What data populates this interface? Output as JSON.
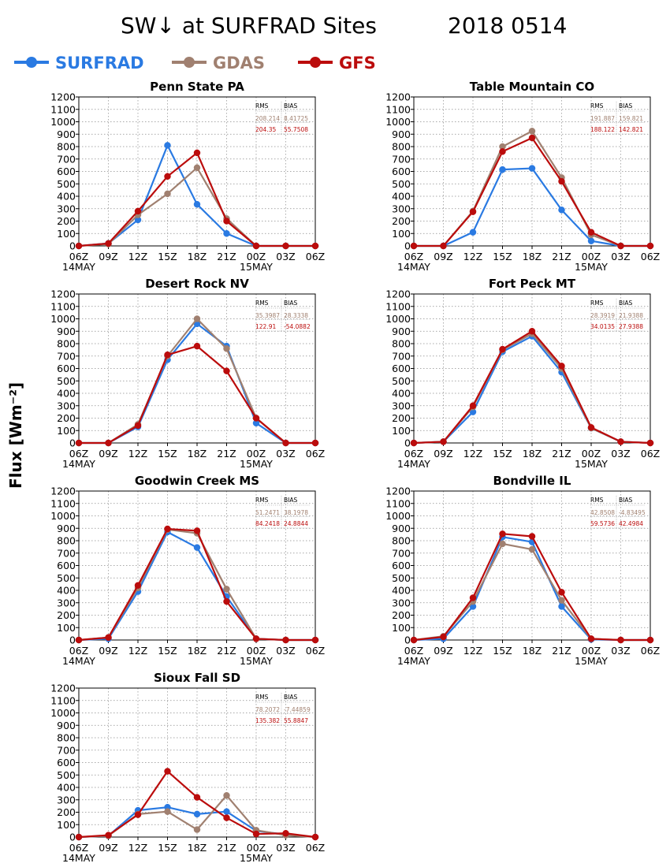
{
  "title": {
    "main": "SW↓ at SURFRAD Sites",
    "date": "2018 0514"
  },
  "y_axis_label": "Flux [Wm⁻²]",
  "legend": [
    {
      "name": "SURFRAD",
      "color": "#2a7ae2"
    },
    {
      "name": "GDAS",
      "color": "#a08070"
    },
    {
      "name": "GFS",
      "color": "#bb0c0c"
    }
  ],
  "chart_data": [
    {
      "type": "line",
      "title": "Penn State PA",
      "x": [
        "06Z",
        "09Z",
        "12Z",
        "15Z",
        "18Z",
        "21Z",
        "00Z",
        "03Z",
        "06Z"
      ],
      "x_date_labels": [
        "14MAY",
        "15MAY"
      ],
      "ylim": [
        0,
        1200
      ],
      "yticks": [
        0,
        100,
        200,
        300,
        400,
        500,
        600,
        700,
        800,
        900,
        1000,
        1100,
        1200
      ],
      "grid": true,
      "stats": {
        "header": [
          "RMS",
          "BIAS"
        ],
        "GDAS": [
          "208.214",
          "8.41725"
        ],
        "GFS": [
          "204.35",
          "55.7508"
        ]
      },
      "series": [
        {
          "name": "SURFRAD",
          "values": [
            0,
            20,
            210,
            810,
            335,
            100,
            0,
            0,
            0
          ]
        },
        {
          "name": "GDAS",
          "values": [
            0,
            15,
            250,
            420,
            630,
            220,
            0,
            0,
            0
          ]
        },
        {
          "name": "GFS",
          "values": [
            0,
            20,
            280,
            560,
            750,
            200,
            0,
            0,
            0
          ]
        }
      ]
    },
    {
      "type": "line",
      "title": "Table Mountain CO",
      "x": [
        "06Z",
        "09Z",
        "12Z",
        "15Z",
        "18Z",
        "21Z",
        "00Z",
        "03Z",
        "06Z"
      ],
      "x_date_labels": [
        "14MAY",
        "15MAY"
      ],
      "ylim": [
        0,
        1200
      ],
      "yticks": [
        0,
        100,
        200,
        300,
        400,
        500,
        600,
        700,
        800,
        900,
        1000,
        1100,
        1200
      ],
      "grid": true,
      "stats": {
        "header": [
          "RMS",
          "BIAS"
        ],
        "GDAS": [
          "191.887",
          "159.821"
        ],
        "GFS": [
          "188.122",
          "142.821"
        ]
      },
      "series": [
        {
          "name": "SURFRAD",
          "values": [
            0,
            0,
            110,
            615,
            625,
            290,
            40,
            0,
            0
          ]
        },
        {
          "name": "GDAS",
          "values": [
            0,
            0,
            280,
            800,
            925,
            550,
            90,
            0,
            0
          ]
        },
        {
          "name": "GFS",
          "values": [
            0,
            0,
            275,
            760,
            870,
            520,
            110,
            0,
            0
          ]
        }
      ]
    },
    {
      "type": "line",
      "title": "Desert Rock NV",
      "x": [
        "06Z",
        "09Z",
        "12Z",
        "15Z",
        "18Z",
        "21Z",
        "00Z",
        "03Z",
        "06Z"
      ],
      "x_date_labels": [
        "14MAY",
        "15MAY"
      ],
      "ylim": [
        0,
        1200
      ],
      "yticks": [
        0,
        100,
        200,
        300,
        400,
        500,
        600,
        700,
        800,
        900,
        1000,
        1100,
        1200
      ],
      "grid": true,
      "stats": {
        "header": [
          "RMS",
          "BIAS"
        ],
        "GDAS": [
          "35.3987",
          "28.3338"
        ],
        "GFS": [
          "122.91",
          "-54.0882"
        ]
      },
      "series": [
        {
          "name": "SURFRAD",
          "values": [
            0,
            0,
            130,
            670,
            960,
            780,
            160,
            0,
            0
          ]
        },
        {
          "name": "GDAS",
          "values": [
            0,
            0,
            150,
            700,
            1000,
            760,
            200,
            0,
            0
          ]
        },
        {
          "name": "GFS",
          "values": [
            0,
            0,
            140,
            710,
            780,
            580,
            200,
            0,
            0
          ]
        }
      ]
    },
    {
      "type": "line",
      "title": "Fort Peck MT",
      "x": [
        "06Z",
        "09Z",
        "12Z",
        "15Z",
        "18Z",
        "21Z",
        "00Z",
        "03Z",
        "06Z"
      ],
      "x_date_labels": [
        "14MAY",
        "15MAY"
      ],
      "ylim": [
        0,
        1200
      ],
      "yticks": [
        0,
        100,
        200,
        300,
        400,
        500,
        600,
        700,
        800,
        900,
        1000,
        1100,
        1200
      ],
      "grid": true,
      "stats": {
        "header": [
          "RMS",
          "BIAS"
        ],
        "GDAS": [
          "28.3919",
          "21.9388"
        ],
        "GFS": [
          "34.0135",
          "27.9388"
        ]
      },
      "series": [
        {
          "name": "SURFRAD",
          "values": [
            0,
            10,
            250,
            735,
            860,
            570,
            120,
            10,
            0
          ]
        },
        {
          "name": "GDAS",
          "values": [
            0,
            10,
            290,
            750,
            880,
            600,
            120,
            10,
            0
          ]
        },
        {
          "name": "GFS",
          "values": [
            0,
            10,
            300,
            755,
            900,
            620,
            125,
            10,
            0
          ]
        }
      ]
    },
    {
      "type": "line",
      "title": "Goodwin Creek MS",
      "x": [
        "06Z",
        "09Z",
        "12Z",
        "15Z",
        "18Z",
        "21Z",
        "00Z",
        "03Z",
        "06Z"
      ],
      "x_date_labels": [
        "14MAY",
        "15MAY"
      ],
      "ylim": [
        0,
        1200
      ],
      "yticks": [
        0,
        100,
        200,
        300,
        400,
        500,
        600,
        700,
        800,
        900,
        1000,
        1100,
        1200
      ],
      "grid": true,
      "stats": {
        "header": [
          "RMS",
          "BIAS"
        ],
        "GDAS": [
          "51.2471",
          "38.1978"
        ],
        "GFS": [
          "84.2418",
          "24.8844"
        ]
      },
      "series": [
        {
          "name": "SURFRAD",
          "values": [
            0,
            10,
            390,
            870,
            745,
            350,
            10,
            0,
            0
          ]
        },
        {
          "name": "GDAS",
          "values": [
            0,
            20,
            420,
            890,
            860,
            410,
            10,
            0,
            0
          ]
        },
        {
          "name": "GFS",
          "values": [
            0,
            20,
            440,
            895,
            880,
            310,
            10,
            0,
            0
          ]
        }
      ]
    },
    {
      "type": "line",
      "title": "Bondville IL",
      "x": [
        "06Z",
        "09Z",
        "12Z",
        "15Z",
        "18Z",
        "21Z",
        "00Z",
        "03Z",
        "06Z"
      ],
      "x_date_labels": [
        "14MAY",
        "15MAY"
      ],
      "ylim": [
        0,
        1200
      ],
      "yticks": [
        0,
        100,
        200,
        300,
        400,
        500,
        600,
        700,
        800,
        900,
        1000,
        1100,
        1200
      ],
      "grid": true,
      "stats": {
        "header": [
          "RMS",
          "BIAS"
        ],
        "GDAS": [
          "42.8508",
          "-4.83495"
        ],
        "GFS": [
          "59.5736",
          "42.4984"
        ]
      },
      "series": [
        {
          "name": "SURFRAD",
          "values": [
            0,
            10,
            270,
            830,
            790,
            270,
            5,
            0,
            0
          ]
        },
        {
          "name": "GDAS",
          "values": [
            0,
            30,
            310,
            775,
            730,
            320,
            10,
            0,
            0
          ]
        },
        {
          "name": "GFS",
          "values": [
            0,
            25,
            340,
            855,
            835,
            385,
            10,
            0,
            0
          ]
        }
      ]
    },
    {
      "type": "line",
      "title": "Sioux Fall SD",
      "x": [
        "06Z",
        "09Z",
        "12Z",
        "15Z",
        "18Z",
        "21Z",
        "00Z",
        "03Z",
        "06Z"
      ],
      "x_date_labels": [
        "14MAY",
        "15MAY"
      ],
      "ylim": [
        0,
        1200
      ],
      "yticks": [
        0,
        100,
        200,
        300,
        400,
        500,
        600,
        700,
        800,
        900,
        1000,
        1100,
        1200
      ],
      "grid": true,
      "stats": {
        "header": [
          "RMS",
          "BIAS"
        ],
        "GDAS": [
          "78.2072",
          "-7.44859"
        ],
        "GFS": [
          "135.382",
          "55.8847"
        ]
      },
      "series": [
        {
          "name": "SURFRAD",
          "values": [
            0,
            10,
            215,
            240,
            185,
            205,
            50,
            20,
            0
          ]
        },
        {
          "name": "GDAS",
          "values": [
            0,
            10,
            185,
            205,
            60,
            335,
            55,
            15,
            0
          ]
        },
        {
          "name": "GFS",
          "values": [
            0,
            15,
            180,
            530,
            320,
            155,
            25,
            30,
            0
          ]
        }
      ]
    }
  ]
}
